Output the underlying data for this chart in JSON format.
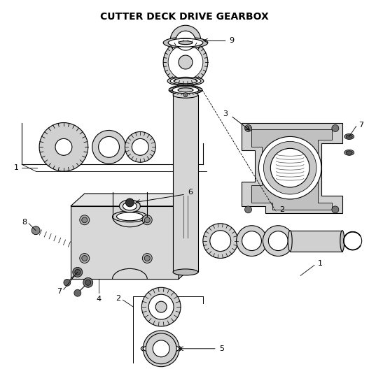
{
  "title": "CUTTER DECK DRIVE GEARBOX",
  "title_fontsize": 10,
  "title_fontweight": "bold",
  "bg_color": "#ffffff",
  "line_color": "#000000",
  "gray_light": "#e8e8e8",
  "gray_mid": "#c8c8c8",
  "gray_dark": "#999999",
  "label_fontsize": 8,
  "figsize": [
    5.27,
    5.48
  ],
  "dpi": 100
}
